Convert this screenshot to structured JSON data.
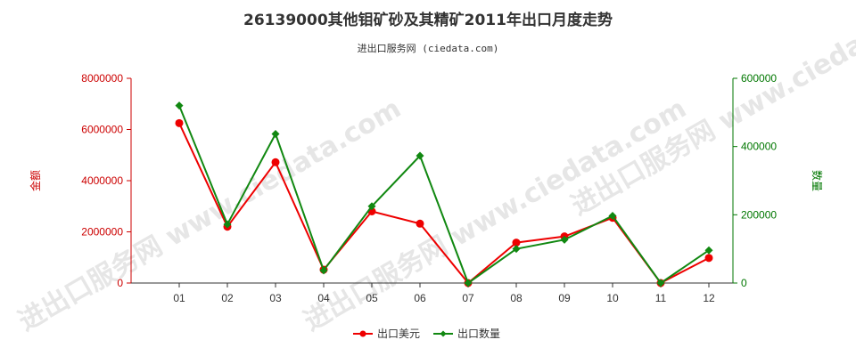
{
  "chart_data": {
    "type": "line",
    "title": "26139000其他钼矿砂及其精矿2011年出口月度走势",
    "subtitle": "进出口服务网 (ciedata.com)",
    "watermark": "进出口服务网 www.ciedata.com",
    "categories": [
      "01",
      "02",
      "03",
      "04",
      "05",
      "06",
      "07",
      "08",
      "09",
      "10",
      "11",
      "12"
    ],
    "y_left": {
      "label": "金额",
      "range": [
        0,
        8000000
      ],
      "ticks": [
        0,
        2000000,
        4000000,
        6000000,
        8000000
      ],
      "tick_labels": [
        "0",
        "2000000",
        "4000000",
        "6000000",
        "8000000"
      ],
      "color": "#cc0000"
    },
    "y_right": {
      "label": "数量",
      "range": [
        0,
        600000
      ],
      "ticks": [
        0,
        200000,
        400000,
        600000
      ],
      "tick_labels": [
        "0",
        "200000",
        "400000",
        "600000"
      ],
      "color": "#007700"
    },
    "series": [
      {
        "name": "出口美元",
        "axis": "left",
        "color": "#ee0000",
        "values": [
          6250000,
          2200000,
          4720000,
          520000,
          2800000,
          2320000,
          0,
          1580000,
          1820000,
          2550000,
          0,
          980000
        ]
      },
      {
        "name": "出口数量",
        "axis": "right",
        "color": "#118811",
        "values": [
          520000,
          172000,
          437000,
          37000,
          225000,
          373000,
          0,
          100000,
          127000,
          197000,
          0,
          96000
        ]
      }
    ],
    "legend_position": "bottom-center",
    "grid": false
  }
}
